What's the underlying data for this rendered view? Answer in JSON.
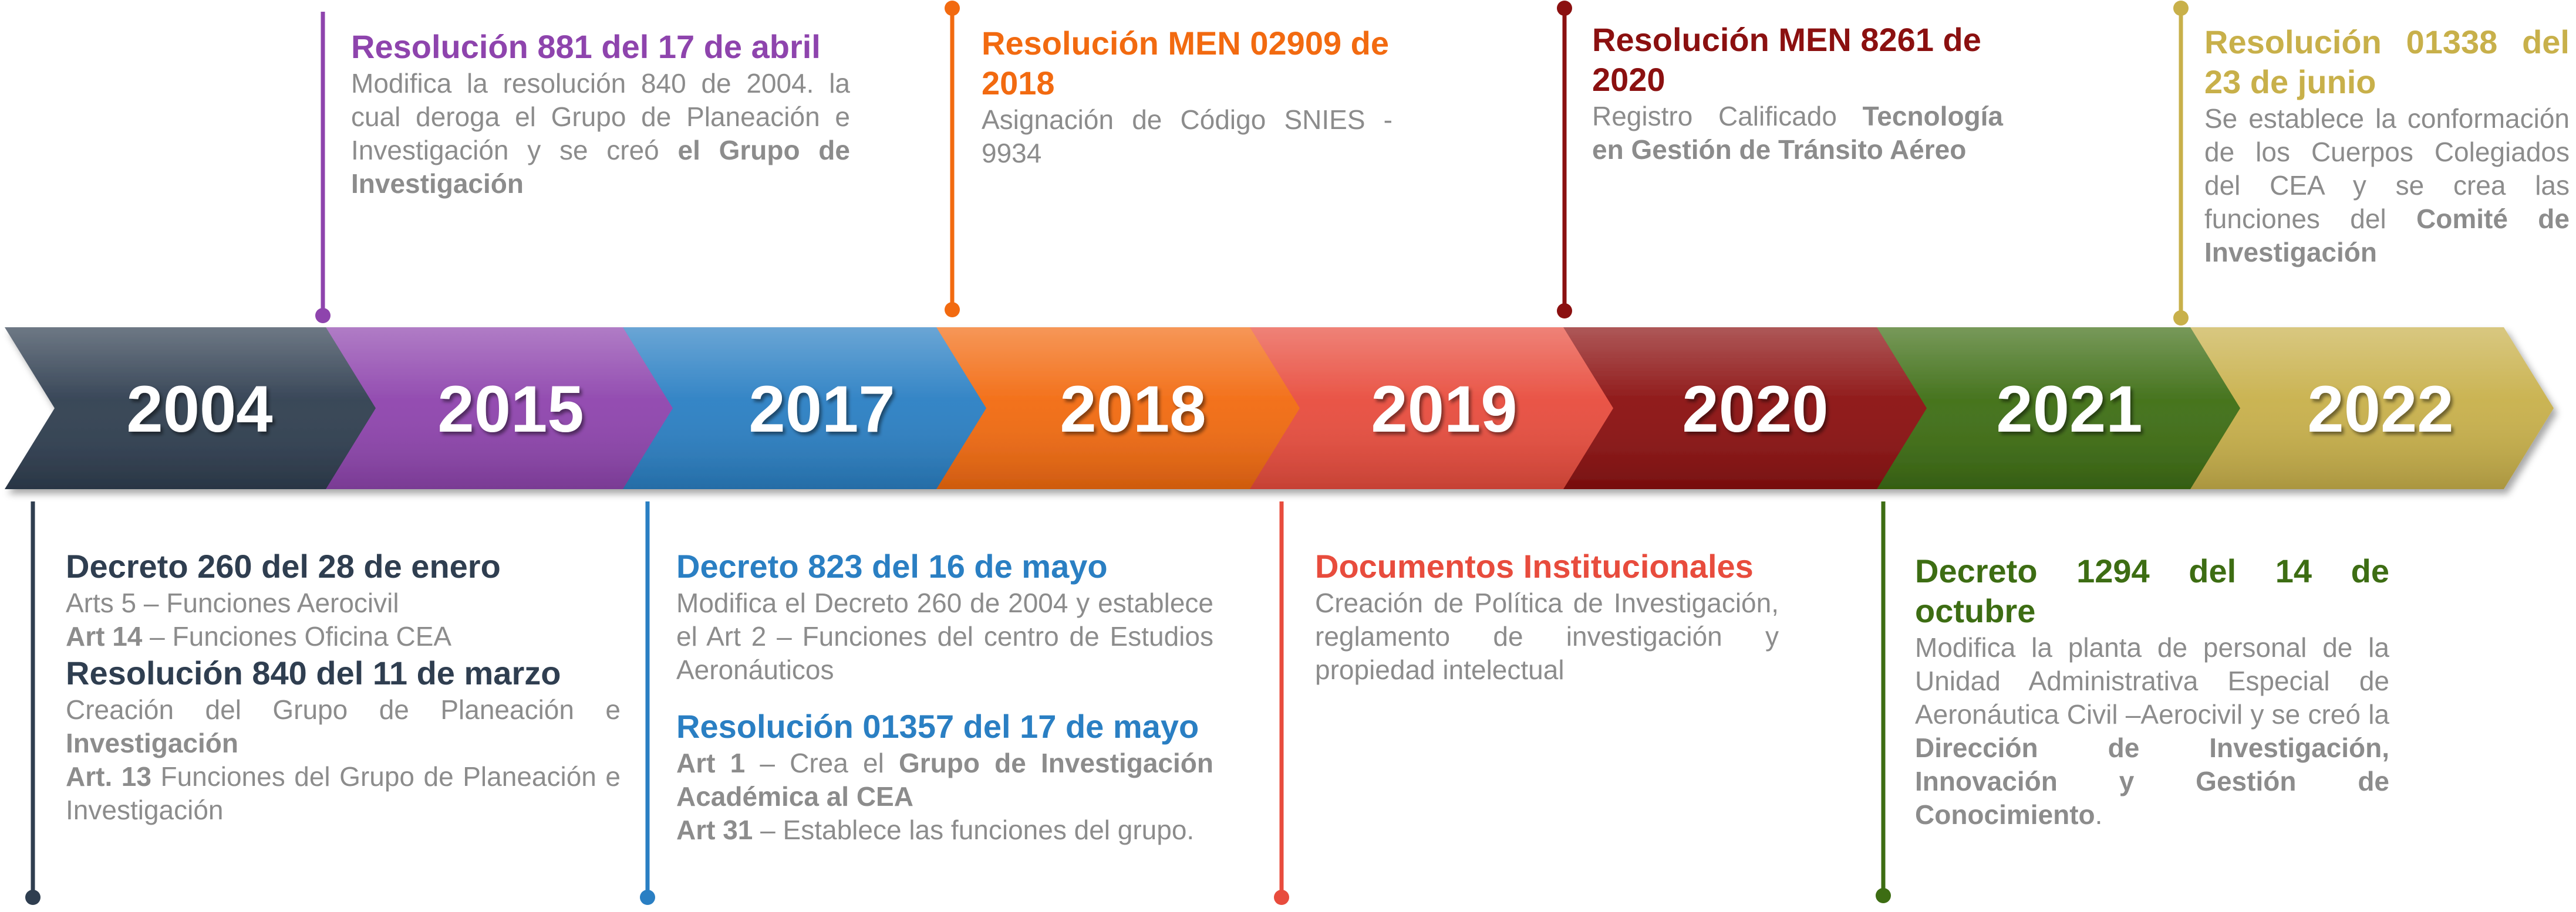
{
  "colors": {
    "2004": "#2f3e50",
    "2015": "#8e44ad",
    "2017": "#2a7fc3",
    "2018": "#f26a10",
    "2019": "#e84c3d",
    "2020": "#8b1010",
    "2021": "#3d6d13",
    "2022": "#c8b04a",
    "desc": "#8c8c8c"
  },
  "years": [
    "2004",
    "2015",
    "2017",
    "2018",
    "2019",
    "2020",
    "2021",
    "2022"
  ],
  "events": {
    "e2004": {
      "title1": "Decreto 260 del 28 de enero",
      "d1a_pre": "Arts 5 – Funciones Aerocivil",
      "d1b_bold": "Art 14",
      "d1b_post": " – Funciones Oficina  CEA",
      "title2": "Resolución 840 del 11 de marzo",
      "d2a_pre": "Creación del Grupo de Planeación e ",
      "d2a_bold": "Investigación",
      "d2b_bold": "Art. 13",
      "d2b_post": " Funciones del Grupo de Planeación e Investigación"
    },
    "e2015": {
      "title": "Resolución 881 del 17 de abril",
      "desc_pre": "Modifica la resolución 840 de 2004. la cual deroga el Grupo de Planeación e Investigación y se creó ",
      "desc_bold": "el Grupo de Investigación"
    },
    "e2017": {
      "title1": "Decreto 823 del 16 de mayo",
      "desc1": "Modifica el Decreto 260 de 2004 y establece el Art 2 – Funciones del centro de Estudios Aeronáuticos",
      "title2": "Resolución 01357 del 17 de mayo",
      "d2a_bold1": "Art 1",
      "d2a_mid": " – Crea el ",
      "d2a_bold2": "Grupo de Investigación Académica al CEA",
      "d2b_bold": "Art 31",
      "d2b_post": " – Establece las funciones del grupo."
    },
    "e2018": {
      "title": "Resolución MEN 02909 de 2018",
      "desc": "Asignación de Código SNIES - 9934"
    },
    "e2019": {
      "title": "Documentos Institucionales",
      "desc": "Creación de Política de Investigación, reglamento de investigación y propiedad intelectual"
    },
    "e2020": {
      "title": "Resolución MEN 8261 de 2020",
      "desc_pre": "Registro Calificado ",
      "desc_bold": "Tecnología en Gestión de Tránsito Aéreo"
    },
    "e2021": {
      "title": "Decreto 1294 del 14 de octubre",
      "desc_pre": "Modifica la planta de personal de la Unidad Administrativa Especial de Aeronáutica Civil –Aerocivil y se creó la ",
      "desc_bold": "Dirección de Investigación, Innovación y Gestión de Conocimiento",
      "desc_post": "."
    },
    "e2022": {
      "title": "Resolución 01338 del 23 de junio",
      "desc_pre": "Se establece la conformación de los Cuerpos Colegiados del CEA y se crea las funciones del ",
      "desc_bold": "Comité de Investigación"
    }
  }
}
